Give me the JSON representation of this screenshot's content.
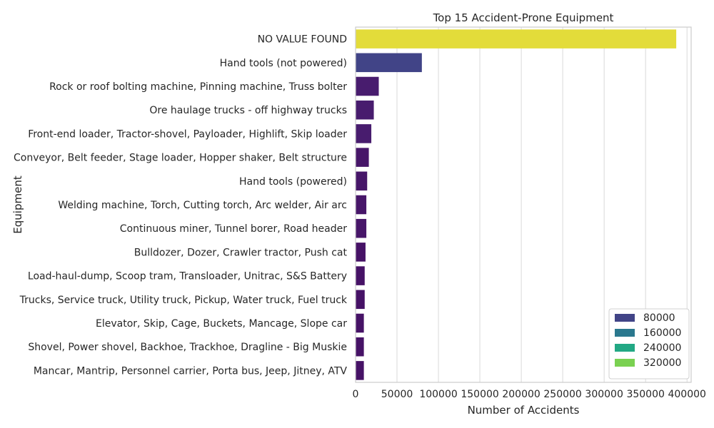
{
  "chart_data": {
    "type": "bar",
    "orientation": "horizontal",
    "title": "Top 15 Accident-Prone Equipment",
    "xlabel": "Number of Accidents",
    "ylabel": "Equipment",
    "xlim": [
      0,
      405000
    ],
    "xticks": [
      0,
      50000,
      100000,
      150000,
      200000,
      250000,
      300000,
      350000,
      400000
    ],
    "grid": "vertical",
    "categories": [
      "NO VALUE FOUND",
      "Hand tools (not powered)",
      "Rock or roof bolting machine, Pinning machine, Truss bolter",
      "Ore haulage trucks - off highway trucks",
      "Front-end loader, Tractor-shovel, Payloader, Highlift, Skip loader",
      "Conveyor, Belt feeder, Stage loader, Hopper shaker, Belt structure",
      "Hand tools (powered)",
      "Welding machine, Torch, Cutting torch, Arc welder, Air arc",
      "Continuous miner, Tunnel borer, Road header",
      "Bulldozer, Dozer, Crawler tractor, Push cat",
      "Load-haul-dump, Scoop tram, Transloader, Unitrac, S&S Battery",
      "Trucks, Service truck, Utility truck, Pickup, Water truck, Fuel truck",
      "Elevator, Skip, Cage, Buckets, Mancage, Slope car",
      "Shovel, Power shovel, Backhoe, Trackhoe, Dragline - Big Muskie",
      "Mancar, Mantrip, Personnel carrier, Porta bus, Jeep, Jitney, ATV"
    ],
    "values": [
      387000,
      80000,
      28000,
      22000,
      19000,
      16000,
      14000,
      13000,
      13000,
      12000,
      11000,
      11000,
      10000,
      10000,
      10000
    ],
    "bar_colors": [
      "#e3dc3a",
      "#414487",
      "#481c6e",
      "#481c6e",
      "#481c6e",
      "#471669",
      "#471669",
      "#471669",
      "#471669",
      "#461266",
      "#461266",
      "#461266",
      "#461266",
      "#461266",
      "#461266"
    ],
    "legend": {
      "position": "bottom-right",
      "entries": [
        {
          "label": "80000",
          "color": "#414487"
        },
        {
          "label": "160000",
          "color": "#2a788e"
        },
        {
          "label": "240000",
          "color": "#22a884"
        },
        {
          "label": "320000",
          "color": "#7ad151"
        }
      ]
    },
    "colors": {
      "grid": "#d9d9d9",
      "frame": "#cccccc",
      "text": "#262626"
    }
  }
}
